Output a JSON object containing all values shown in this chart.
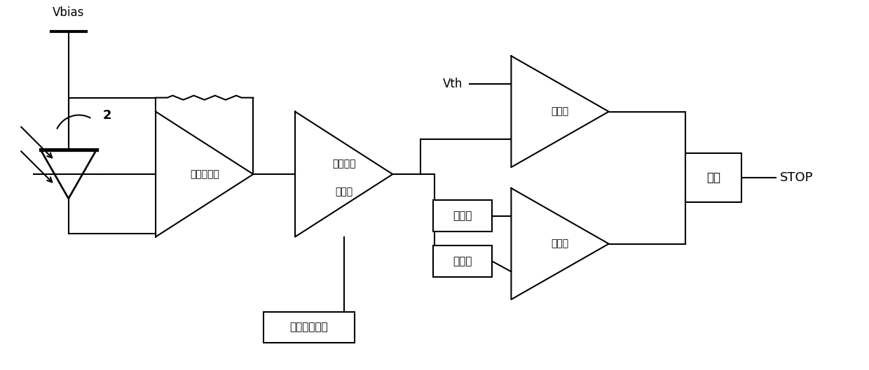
{
  "bg_color": "#ffffff",
  "line_color": "#000000",
  "line_width": 1.5,
  "fig_width": 12.4,
  "fig_height": 5.29,
  "dpi": 100,
  "labels": {
    "vbias": "Vbias",
    "num2": "2",
    "tia": "跨阻放大器",
    "vga_line1": "可变增益",
    "vga_line2": "放大器",
    "comp1": "比较器",
    "comp2": "比较器",
    "delay": "延时器",
    "atten": "衰减器",
    "gain_ctrl": "增益控制电路",
    "and_gate": "与门",
    "vth": "Vth",
    "stop": "STOP"
  }
}
